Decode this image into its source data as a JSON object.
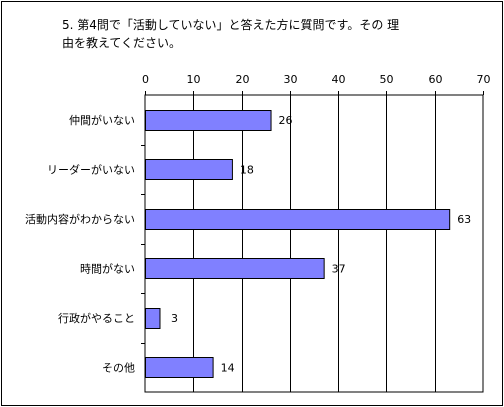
{
  "chart_data": {
    "type": "bar",
    "orientation": "horizontal",
    "title_line1": "5. 第4問で「活動していない」と答えた方に質問です。その 理",
    "title_line2": "由を教えてください。",
    "categories": [
      "仲間がいない",
      "リーダーがいない",
      "活動内容がわからない",
      "時間がない",
      "行政がやること",
      "その他"
    ],
    "values": [
      26,
      18,
      63,
      37,
      3,
      14
    ],
    "xlim": [
      0,
      70
    ],
    "xticks": [
      0,
      10,
      20,
      30,
      40,
      50,
      60,
      70
    ],
    "grid": true,
    "legend": "none",
    "colors": {
      "bar_fill": "#8080ff",
      "bar_stroke": "#000000",
      "grid": "#000000",
      "border": "#000000"
    }
  }
}
